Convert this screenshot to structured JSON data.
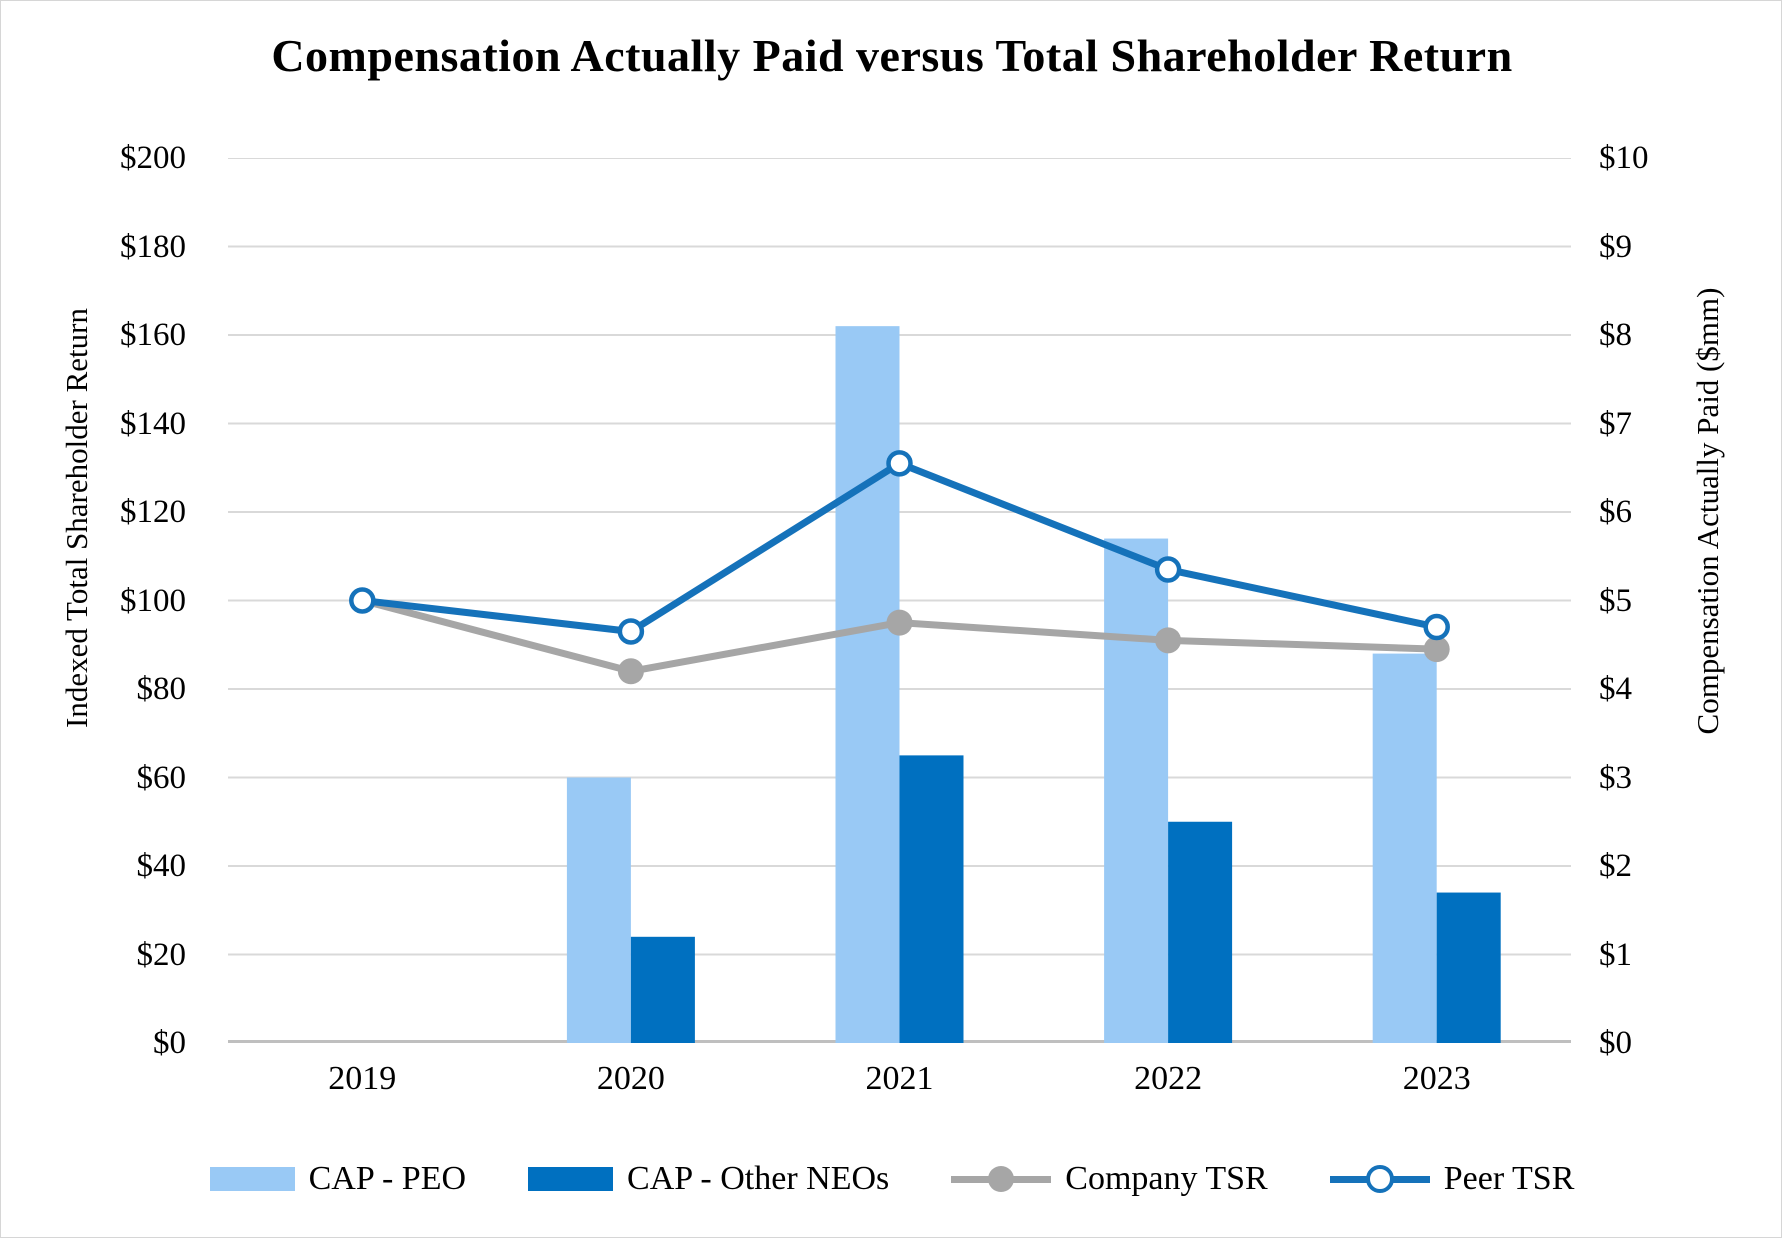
{
  "title": "Compensation Actually Paid versus Total Shareholder Return",
  "chart_data": {
    "type": "combo-bar-line",
    "categories": [
      "2019",
      "2020",
      "2021",
      "2022",
      "2023"
    ],
    "series": [
      {
        "name": "CAP - PEO",
        "type": "bar",
        "axis": "right",
        "color": "#99C9F5",
        "values": [
          null,
          3.0,
          8.1,
          5.7,
          4.4
        ]
      },
      {
        "name": "CAP - Other NEOs",
        "type": "bar",
        "axis": "right",
        "color": "#0070C0",
        "values": [
          null,
          1.2,
          3.25,
          2.5,
          1.7
        ]
      },
      {
        "name": "Company TSR",
        "type": "line",
        "axis": "left",
        "color": "#A6A6A6",
        "marker": "filled-circle",
        "values": [
          100,
          84,
          95,
          91,
          89
        ]
      },
      {
        "name": "Peer TSR",
        "type": "line",
        "axis": "left",
        "color": "#1572BA",
        "marker": "open-circle",
        "values": [
          100,
          93,
          131,
          107,
          94
        ]
      }
    ],
    "left_axis": {
      "label": "Indexed Total Shareholder Return",
      "min": 0,
      "max": 200,
      "step": 20,
      "ticks": [
        "$200",
        "$180",
        "$160",
        "$140",
        "$120",
        "$100",
        "$80",
        "$60",
        "$40",
        "$20",
        "$0"
      ]
    },
    "right_axis": {
      "label": "Compensation Actually Paid ($mm)",
      "min": 0,
      "max": 10,
      "step": 1,
      "ticks": [
        "$10",
        "$9",
        "$8",
        "$7",
        "$6",
        "$5",
        "$4",
        "$3",
        "$2",
        "$1",
        "$0"
      ]
    },
    "grid": true,
    "gridline_color": "#D9D9D9",
    "baseline_color": "#BFBFBF",
    "legend_position": "bottom"
  }
}
